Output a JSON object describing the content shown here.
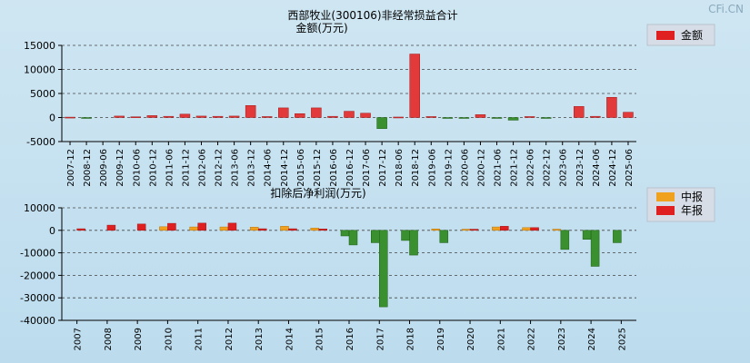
{
  "watermark": "CFi.CN",
  "colors": {
    "positive": "#e23a3a",
    "negative": "#3a8f2e",
    "interim": "#f0a21e",
    "annual": "#e02020",
    "grid": "#444444",
    "axis": "#000000"
  },
  "chart_data": [
    {
      "type": "bar",
      "title": "西部牧业(300106)非经常损益合计",
      "subtitle": "金额(万元)",
      "legend": [
        {
          "label": "金额",
          "color": "#e02020"
        }
      ],
      "legend_position": "top-right",
      "grid": true,
      "ylim": [
        -5000,
        15000
      ],
      "yticks": [
        15000,
        10000,
        5000,
        0,
        -5000
      ],
      "categories": [
        "2007-12",
        "2008-12",
        "2009-06",
        "2009-12",
        "2010-06",
        "2010-12",
        "2011-06",
        "2011-12",
        "2012-06",
        "2012-12",
        "2013-06",
        "2013-12",
        "2014-06",
        "2014-12",
        "2015-06",
        "2015-12",
        "2016-06",
        "2016-12",
        "2017-06",
        "2017-12",
        "2018-06",
        "2018-12",
        "2019-06",
        "2019-12",
        "2020-06",
        "2020-12",
        "2021-06",
        "2021-12",
        "2022-06",
        "2022-12",
        "2023-06",
        "2023-12",
        "2024-06",
        "2024-12",
        "2025-06"
      ],
      "values": [
        80,
        -80,
        0,
        300,
        150,
        400,
        250,
        700,
        300,
        250,
        300,
        2500,
        200,
        2000,
        800,
        2000,
        250,
        1300,
        900,
        -2300,
        100,
        13200,
        200,
        -50,
        -50,
        600,
        -100,
        -550,
        200,
        -50,
        0,
        2300,
        250,
        4200,
        1100
      ]
    },
    {
      "type": "bar",
      "title": "扣除后净利润(万元)",
      "legend": [
        {
          "label": "中报",
          "color": "#f0a21e"
        },
        {
          "label": "年报",
          "color": "#e02020"
        }
      ],
      "legend_position": "top-right",
      "grid": true,
      "ylim": [
        -40000,
        10000
      ],
      "yticks": [
        10000,
        0,
        -10000,
        -20000,
        -30000,
        -40000
      ],
      "categories": [
        "2007",
        "2008",
        "2009",
        "2010",
        "2011",
        "2012",
        "2013",
        "2014",
        "2015",
        "2016",
        "2017",
        "2018",
        "2019",
        "2020",
        "2021",
        "2022",
        "2023",
        "2024",
        "2025"
      ],
      "series": [
        {
          "name": "中报",
          "values": [
            null,
            null,
            null,
            1600,
            1500,
            1500,
            1400,
            1800,
            1000,
            -2500,
            -5500,
            -4500,
            600,
            500,
            1500,
            1200,
            500,
            -4000,
            -5500
          ]
        },
        {
          "name": "年报",
          "values": [
            700,
            2300,
            2800,
            3100,
            3200,
            3200,
            700,
            700,
            600,
            -6500,
            -34000,
            -11000,
            -5500,
            500,
            1800,
            1200,
            -8500,
            -16000,
            null
          ]
        }
      ]
    }
  ]
}
